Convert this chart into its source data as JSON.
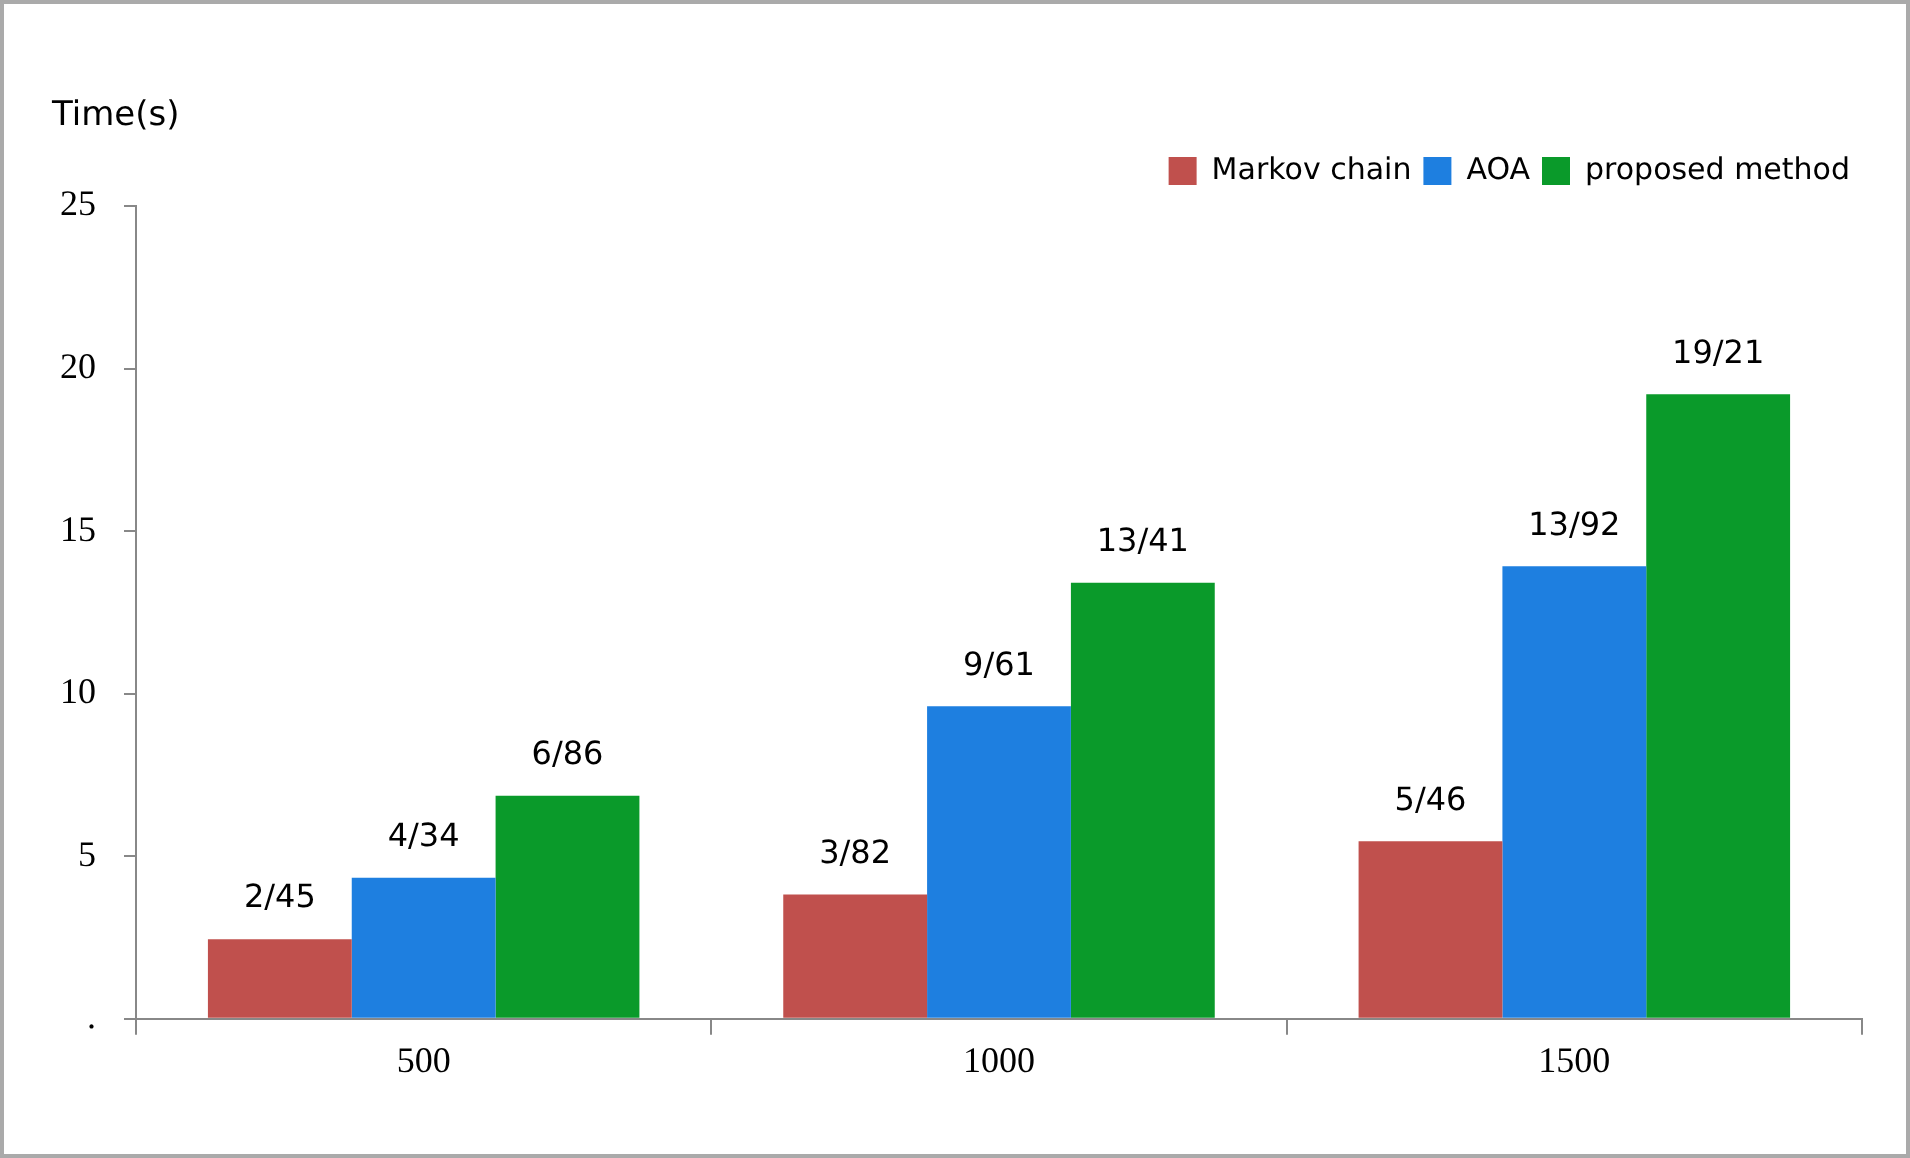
{
  "chart_data": {
    "type": "bar",
    "ylabel": "Time(s)",
    "categories": [
      "500",
      "1000",
      "1500"
    ],
    "series": [
      {
        "name": "Markov chain",
        "color": "#c0504d",
        "values": [
          2.45,
          3.82,
          5.46
        ],
        "value_labels": [
          "2/45",
          "3/82",
          "5/46"
        ]
      },
      {
        "name": "AOA",
        "color": "#1e7fe0",
        "values": [
          4.34,
          9.61,
          13.92
        ],
        "value_labels": [
          "4/34",
          "9/61",
          "13/92"
        ]
      },
      {
        "name": "proposed method",
        "color": "#0a9a2a",
        "values": [
          6.86,
          13.41,
          19.21
        ],
        "value_labels": [
          "6/86",
          "13/41",
          "19/21"
        ]
      }
    ],
    "ylim": [
      0,
      25
    ],
    "yticks": [
      {
        "value": 0,
        "label": "."
      },
      5,
      10,
      15,
      20,
      25
    ],
    "grid": false,
    "legend": "top right"
  }
}
